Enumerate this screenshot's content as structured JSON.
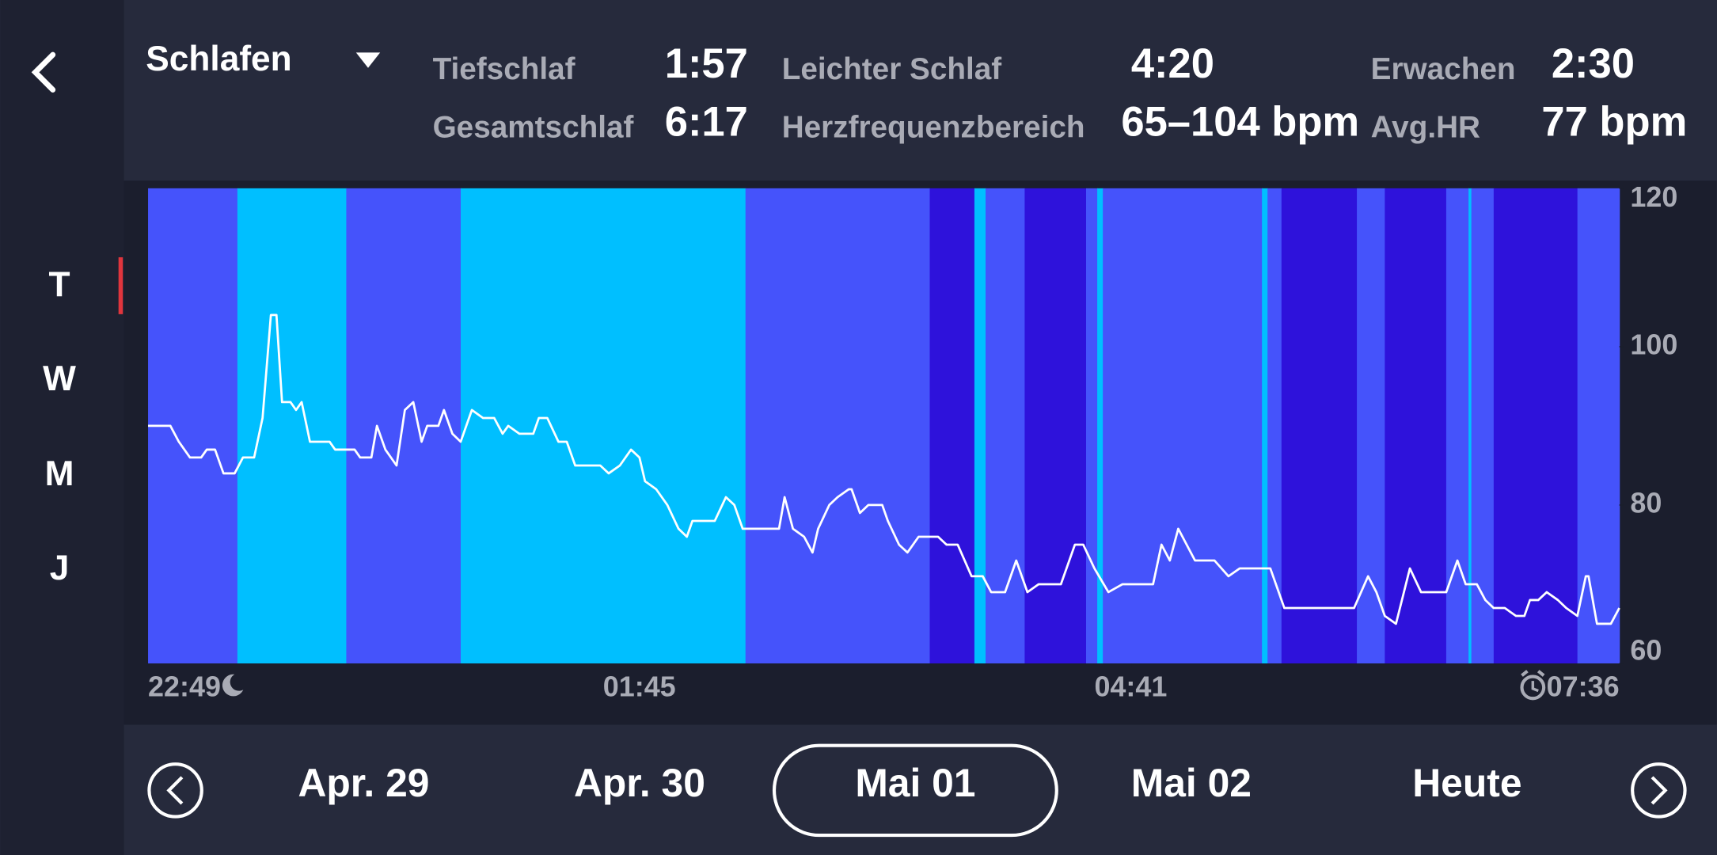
{
  "sidebar": {
    "tabs": [
      "T",
      "W",
      "M",
      "J"
    ]
  },
  "header": {
    "title": "Schlafen",
    "stats": [
      {
        "label": "Tiefschlaf",
        "value": "1:57"
      },
      {
        "label": "Leichter Schlaf",
        "value": "4:20"
      },
      {
        "label": "Erwachen",
        "value": "2:30"
      },
      {
        "label": "Gesamtschlaf",
        "value": "6:17"
      },
      {
        "label": "Herzfrequenzbereich",
        "value": "65–104 bpm"
      },
      {
        "label": "Avg.HR",
        "value": "77 bpm"
      }
    ]
  },
  "chart_data": {
    "type": "line",
    "color": "#ffffff",
    "xlim": [
      0,
      527
    ],
    "xticks": [
      {
        "value": 0,
        "label": "22:49"
      },
      {
        "value": 176,
        "label": "01:45"
      },
      {
        "value": 352,
        "label": "04:41"
      },
      {
        "value": 527,
        "label": "07:36"
      }
    ],
    "ylim": [
      60,
      120
    ],
    "yticks": [
      60,
      80,
      100,
      120
    ],
    "x": [
      0,
      8,
      11,
      15,
      19,
      21,
      24,
      27,
      31,
      34,
      38,
      41,
      44,
      46,
      48,
      51,
      53,
      55,
      58,
      65,
      67,
      74,
      76,
      80,
      82,
      85,
      89,
      92,
      95,
      98,
      100,
      104,
      106,
      109,
      112,
      116,
      120,
      124,
      127,
      129,
      133,
      138,
      140,
      143,
      147,
      150,
      153,
      156,
      162,
      165,
      169,
      173,
      176,
      178,
      182,
      186,
      190,
      193,
      195,
      203,
      207,
      210,
      213,
      226,
      228,
      231,
      235,
      238,
      240,
      244,
      247,
      251,
      252,
      255,
      258,
      261,
      263,
      265,
      269,
      272,
      276,
      283,
      286,
      290,
      295,
      299,
      302,
      307,
      311,
      315,
      319,
      327,
      332,
      335,
      339,
      344,
      349,
      360,
      363,
      366,
      369,
      375,
      382,
      387,
      391,
      402,
      407,
      432,
      437,
      440,
      443,
      447,
      452,
      456,
      465,
      469,
      472,
      476,
      479,
      482,
      486,
      490,
      493,
      495,
      498,
      501,
      505,
      508,
      512,
      515,
      516,
      519,
      524,
      527
    ],
    "values": [
      90,
      90,
      88,
      86,
      86,
      87,
      87,
      84,
      84,
      86,
      86,
      91,
      104,
      104,
      93,
      93,
      92,
      93,
      88,
      88,
      87,
      87,
      86,
      86,
      90,
      87,
      85,
      92,
      93,
      88,
      90,
      90,
      92,
      89,
      88,
      92,
      91,
      91,
      89,
      90,
      89,
      89,
      91,
      91,
      88,
      88,
      85,
      85,
      85,
      84,
      85,
      87,
      86,
      83,
      82,
      80,
      77,
      76,
      78,
      78,
      81,
      80,
      77,
      77,
      81,
      77,
      76,
      74,
      77,
      80,
      81,
      82,
      82,
      79,
      80,
      80,
      80,
      78,
      75,
      74,
      76,
      76,
      75,
      75,
      71,
      71,
      69,
      69,
      73,
      69,
      70,
      70,
      75,
      75,
      72,
      69,
      70,
      70,
      75,
      73,
      77,
      73,
      73,
      71,
      72,
      72,
      67,
      67,
      71,
      69,
      66,
      65,
      72,
      69,
      69,
      73,
      70,
      70,
      68,
      67,
      67,
      66,
      66,
      68,
      68,
      69,
      68,
      67,
      66,
      71,
      71,
      65,
      65,
      67
    ],
    "bands": [
      {
        "color": "#4553fb",
        "x": [
          0,
          32
        ]
      },
      {
        "color": "#00bfff",
        "x": [
          32,
          71
        ]
      },
      {
        "color": "#4553fb",
        "x": [
          71,
          112
        ]
      },
      {
        "color": "#00bfff",
        "x": [
          112,
          214
        ]
      },
      {
        "color": "#4553fb",
        "x": [
          214,
          280
        ]
      },
      {
        "color": "#2e12db",
        "x": [
          280,
          296
        ]
      },
      {
        "color": "#00bfff",
        "x": [
          296,
          300
        ]
      },
      {
        "color": "#4553fb",
        "x": [
          300,
          314
        ]
      },
      {
        "color": "#2e12db",
        "x": [
          314,
          336
        ]
      },
      {
        "color": "#4553fb",
        "x": [
          336,
          340
        ]
      },
      {
        "color": "#00bfff",
        "x": [
          340,
          342
        ]
      },
      {
        "color": "#4553fb",
        "x": [
          342,
          399
        ]
      },
      {
        "color": "#00bfff",
        "x": [
          399,
          401
        ]
      },
      {
        "color": "#4553fb",
        "x": [
          401,
          406
        ]
      },
      {
        "color": "#2e12db",
        "x": [
          406,
          433
        ]
      },
      {
        "color": "#4553fb",
        "x": [
          433,
          443
        ]
      },
      {
        "color": "#2e12db",
        "x": [
          443,
          465
        ]
      },
      {
        "color": "#4553fb",
        "x": [
          465,
          473
        ]
      },
      {
        "color": "#00bfff",
        "x": [
          473,
          474
        ]
      },
      {
        "color": "#4553fb",
        "x": [
          474,
          482
        ]
      },
      {
        "color": "#2e12db",
        "x": [
          482,
          512
        ]
      },
      {
        "color": "#4553fb",
        "x": [
          512,
          527
        ]
      }
    ]
  },
  "dates": {
    "items": [
      "Apr. 29",
      "Apr. 30",
      "Mai 01",
      "Mai 02",
      "Heute"
    ],
    "selected_index": 2
  }
}
